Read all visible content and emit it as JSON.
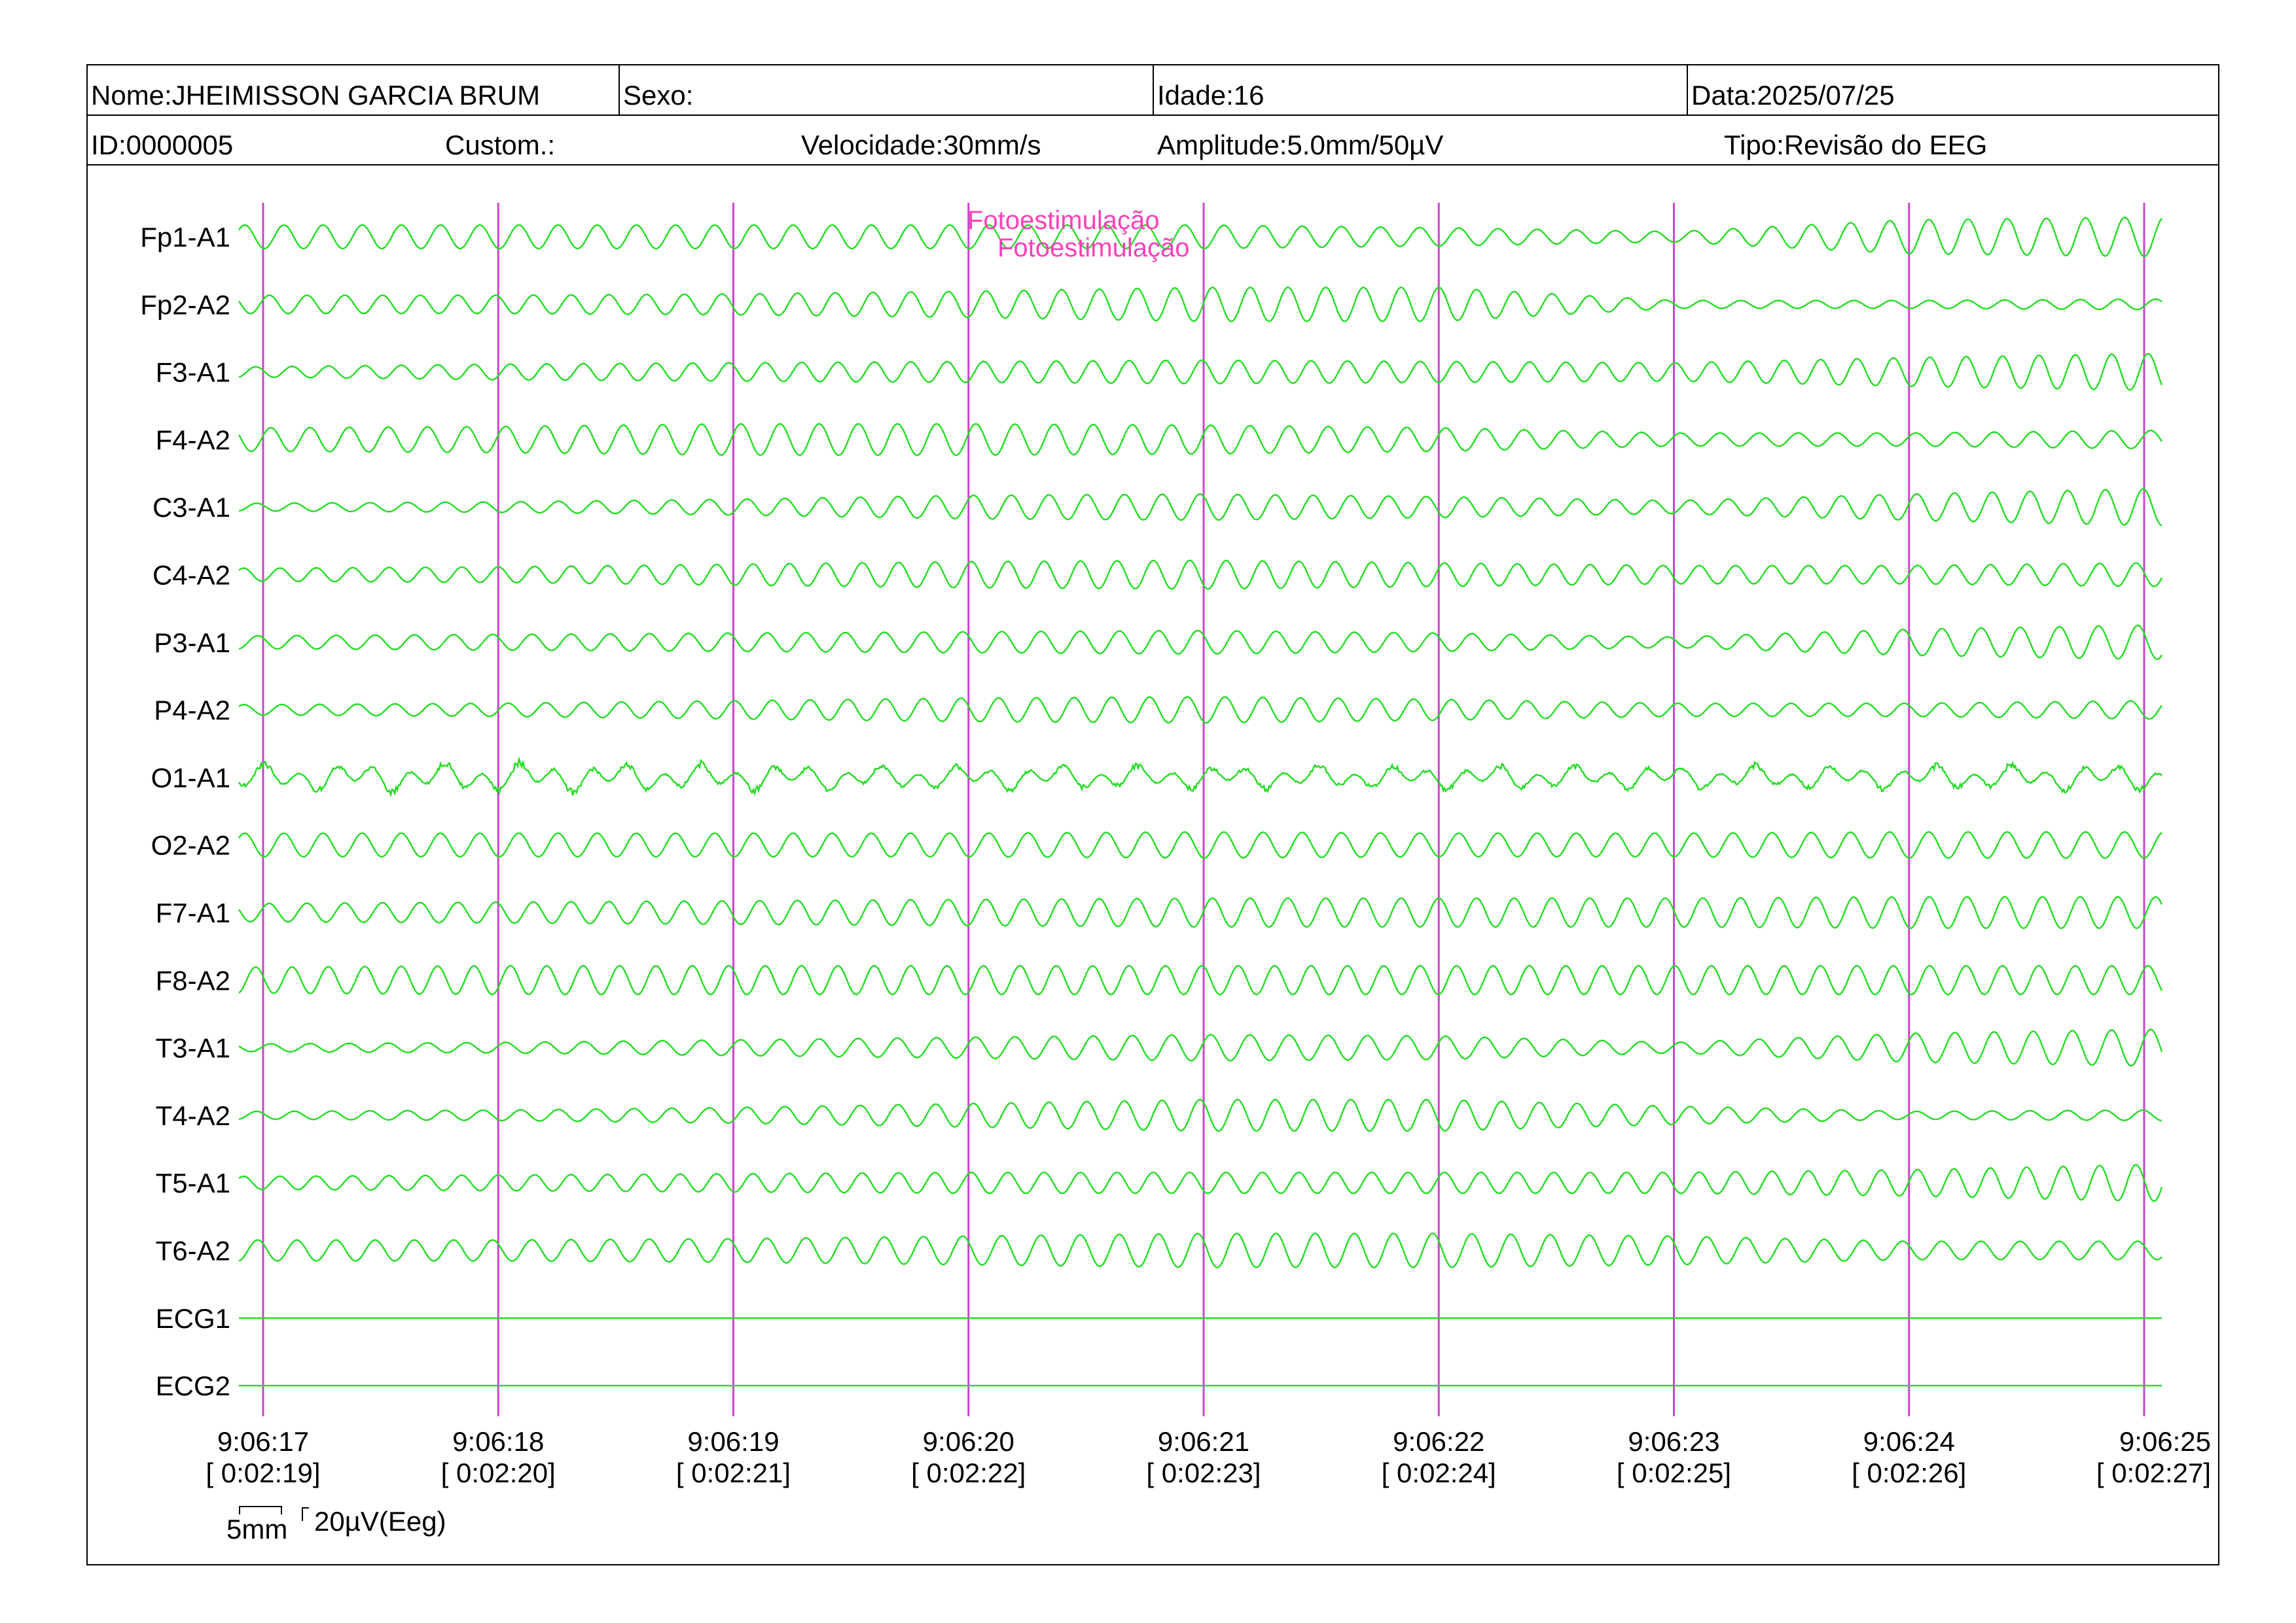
{
  "header": {
    "nome": "Nome:JHEIMISSON GARCIA BRUM",
    "sexo": "Sexo:",
    "idade": "Idade:16",
    "data": "Data:2025/07/25",
    "id": "ID:0000005",
    "custom": "Custom.:",
    "velocidade": "Velocidade:30mm/s",
    "amplitude": "Amplitude:5.0mm/50µV",
    "tipo": "Tipo:Revisão do EEG"
  },
  "events": [
    {
      "label": "Fotoestimulação",
      "time": "9:06:20"
    },
    {
      "label": "Fotoestimulação",
      "time": "9:06:20"
    }
  ],
  "scale_bar": {
    "time_label": "5mm",
    "amp_label": "20µV(Eeg)"
  },
  "colors": {
    "trace": "#22dd22",
    "marker_line": "#cc44cc",
    "event_text": "#ff40b8",
    "frame": "#000000"
  },
  "chart_data": {
    "type": "line",
    "title": "",
    "xlabel": "",
    "ylabel": "",
    "x_ticks": [
      {
        "time": "9:06:17",
        "elapsed": "[ 0:02:19]"
      },
      {
        "time": "9:06:18",
        "elapsed": "[ 0:02:20]"
      },
      {
        "time": "9:06:19",
        "elapsed": "[ 0:02:21]"
      },
      {
        "time": "9:06:20",
        "elapsed": "[ 0:02:22]"
      },
      {
        "time": "9:06:21",
        "elapsed": "[ 0:02:23]"
      },
      {
        "time": "9:06:22",
        "elapsed": "[ 0:02:24]"
      },
      {
        "time": "9:06:23",
        "elapsed": "[ 0:02:25]"
      },
      {
        "time": "9:06:24",
        "elapsed": "[ 0:02:26]"
      },
      {
        "time": "9:06:25",
        "elapsed": "[ 0:02:27]"
      }
    ],
    "xlim": [
      "9:06:17",
      "9:06:25"
    ],
    "grid": "vertical lines at each second",
    "series": [
      {
        "name": "Fp1-A1",
        "pattern": "oscillating",
        "segment_amplitude_uV": [
          18,
          18,
          18,
          18,
          18,
          14,
          8,
          26,
          30
        ]
      },
      {
        "name": "Fp2-A2",
        "pattern": "oscillating",
        "segment_amplitude_uV": [
          14,
          14,
          16,
          20,
          26,
          26,
          6,
          6,
          8
        ]
      },
      {
        "name": "F3-A1",
        "pattern": "oscillating",
        "segment_amplitude_uV": [
          8,
          12,
          14,
          16,
          18,
          16,
          14,
          22,
          28
        ]
      },
      {
        "name": "F4-A2",
        "pattern": "oscillating",
        "segment_amplitude_uV": [
          18,
          20,
          24,
          24,
          22,
          18,
          10,
          10,
          14
        ]
      },
      {
        "name": "C3-A1",
        "pattern": "oscillating",
        "segment_amplitude_uV": [
          6,
          8,
          12,
          18,
          20,
          16,
          10,
          20,
          28
        ]
      },
      {
        "name": "C4-A2",
        "pattern": "oscillating",
        "segment_amplitude_uV": [
          10,
          12,
          16,
          20,
          22,
          18,
          14,
          14,
          18
        ]
      },
      {
        "name": "P3-A1",
        "pattern": "oscillating",
        "segment_amplitude_uV": [
          10,
          12,
          14,
          16,
          18,
          14,
          8,
          20,
          26
        ]
      },
      {
        "name": "P4-A2",
        "pattern": "oscillating",
        "segment_amplitude_uV": [
          8,
          10,
          14,
          18,
          20,
          16,
          10,
          10,
          14
        ]
      },
      {
        "name": "O1-A1",
        "pattern": "irregular",
        "segment_amplitude_uV": [
          22,
          26,
          22,
          20,
          20,
          20,
          20,
          20,
          22
        ]
      },
      {
        "name": "O2-A2",
        "pattern": "oscillating",
        "segment_amplitude_uV": [
          18,
          18,
          18,
          18,
          20,
          18,
          18,
          20,
          20
        ]
      },
      {
        "name": "F7-A1",
        "pattern": "oscillating",
        "segment_amplitude_uV": [
          14,
          16,
          18,
          20,
          22,
          22,
          22,
          24,
          24
        ]
      },
      {
        "name": "F8-A2",
        "pattern": "oscillating",
        "segment_amplitude_uV": [
          20,
          22,
          22,
          22,
          22,
          22,
          22,
          22,
          22
        ]
      },
      {
        "name": "T3-A1",
        "pattern": "oscillating",
        "segment_amplitude_uV": [
          6,
          8,
          12,
          16,
          20,
          18,
          8,
          22,
          28
        ]
      },
      {
        "name": "T4-A2",
        "pattern": "oscillating",
        "segment_amplitude_uV": [
          6,
          8,
          12,
          18,
          24,
          24,
          14,
          6,
          8
        ]
      },
      {
        "name": "T5-A1",
        "pattern": "oscillating",
        "segment_amplitude_uV": [
          10,
          12,
          14,
          16,
          16,
          16,
          16,
          20,
          28
        ]
      },
      {
        "name": "T6-A2",
        "pattern": "oscillating",
        "segment_amplitude_uV": [
          16,
          16,
          18,
          22,
          26,
          26,
          22,
          14,
          14
        ]
      },
      {
        "name": "ECG1",
        "pattern": "flat",
        "segment_amplitude_uV": [
          0,
          0,
          0,
          0,
          0,
          0,
          0,
          0,
          0
        ]
      },
      {
        "name": "ECG2",
        "pattern": "flat",
        "segment_amplitude_uV": [
          0,
          0,
          0,
          0,
          0,
          0,
          0,
          0,
          0
        ]
      }
    ]
  }
}
